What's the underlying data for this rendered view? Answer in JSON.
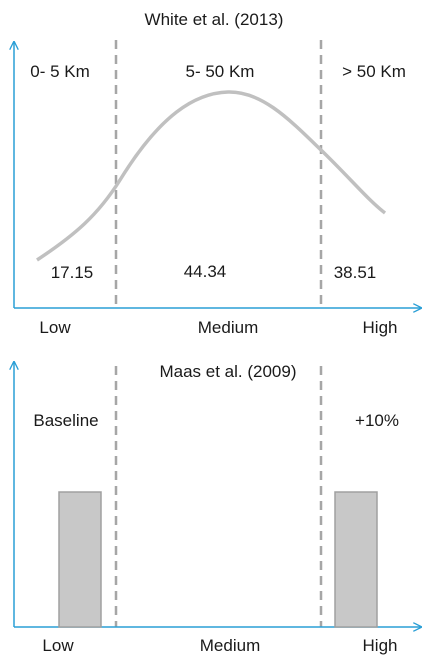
{
  "top_panel": {
    "title": "White et al. (2013)",
    "zones": [
      "0- 5 Km",
      "5- 50 Km",
      "> 50 Km"
    ],
    "values": [
      "17.15",
      "44.34",
      "38.51"
    ],
    "x_labels": [
      "Low",
      "Medium",
      "High"
    ]
  },
  "bottom_panel": {
    "title": "Maas et al. (2009)",
    "left_note": "Baseline",
    "right_note": "+10%",
    "x_labels": [
      "Low",
      "Medium",
      "High"
    ]
  },
  "colors": {
    "axis": "#2a9fd6",
    "divider": "#a6a6a6",
    "curve": "#c0c0c0",
    "bar_fill": "#c8c8c8",
    "bar_stroke": "#a0a0a0"
  }
}
